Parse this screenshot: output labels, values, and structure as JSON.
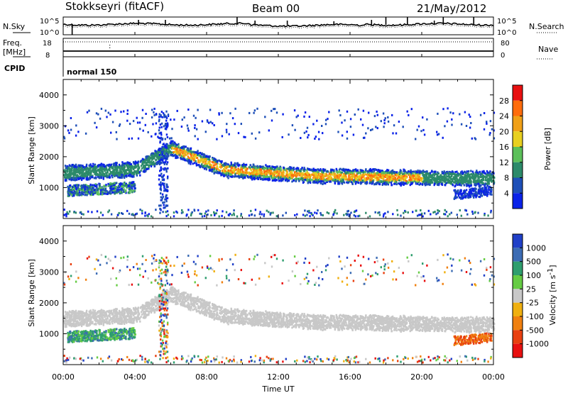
{
  "header": {
    "station": "Stokkseyri (fitACF)",
    "beam": "Beam 00",
    "date": "21/May/2012"
  },
  "status_panels": {
    "nsky_label": "N.Sky",
    "nsky_ticks": [
      "10^5",
      "10^0"
    ],
    "nsearch_label": "N.Search",
    "nsearch_ticks": [
      "10^5",
      "10^0"
    ],
    "freq_label": "Freq.",
    "freq_unit": "[MHz]",
    "freq_ticks": [
      "18",
      "8"
    ],
    "nave_label": "Nave",
    "nave_ticks": [
      "80",
      "0"
    ],
    "cpid_label": "CPID",
    "cpid_value": "normal 150"
  },
  "chart_data": [
    {
      "type": "heatmap",
      "name": "power",
      "ylabel": "Slant Range [km]",
      "ylim": [
        0,
        4500
      ],
      "yticks": [
        "1000",
        "2000",
        "3000",
        "4000"
      ],
      "xlim": [
        0,
        24
      ],
      "colorbar_label": "Power [dB]",
      "colorbar_ticks": [
        "4",
        "8",
        "12",
        "16",
        "20",
        "24",
        "28"
      ],
      "colorbar_colors": [
        "#0a22e8",
        "#1e4fb8",
        "#2c8a6a",
        "#5cc05a",
        "#e8d020",
        "#f0a018",
        "#ff6c0c",
        "#e81010"
      ]
    },
    {
      "type": "heatmap",
      "name": "velocity",
      "ylabel": "Slant Range [km]",
      "ylim": [
        0,
        4500
      ],
      "yticks": [
        "1000",
        "2000",
        "3000",
        "4000"
      ],
      "xlim": [
        0,
        24
      ],
      "xlabel": "Time UT",
      "xticks": [
        "00:00",
        "04:00",
        "08:00",
        "12:00",
        "16:00",
        "20:00",
        "00:00"
      ],
      "colorbar_label": "Velocity [m s",
      "colorbar_label_sup": "-1",
      "colorbar_label_end": "]",
      "colorbar_ticks": [
        "1000",
        "500",
        "100",
        "25",
        "-25",
        "-100",
        "-500",
        "-1000"
      ],
      "colorbar_colors": [
        "#2040c8",
        "#3c6cb4",
        "#2e9e6e",
        "#66cc44",
        "#c8c8c8",
        "#f0b010",
        "#f08010",
        "#e84010",
        "#e81010"
      ]
    }
  ]
}
